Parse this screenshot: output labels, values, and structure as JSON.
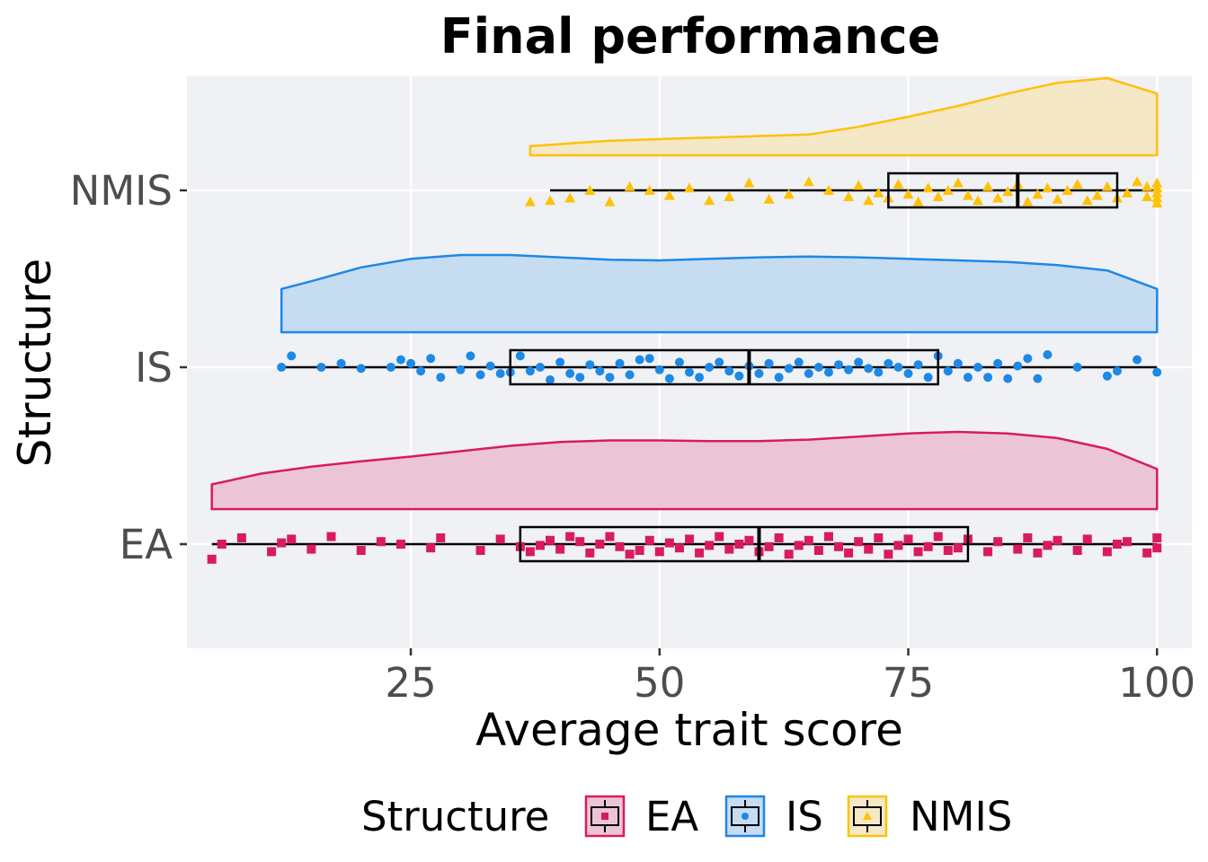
{
  "chart_data": {
    "type": "raincloud",
    "title": "Final performance",
    "xlabel": "Average trait score",
    "ylabel": "Structure",
    "xlim": [
      2.5,
      103.5
    ],
    "xticks": [
      25,
      50,
      75,
      100
    ],
    "xtick_labels": [
      "25",
      "50",
      "75",
      "100"
    ],
    "grid": true,
    "legend": {
      "title": "Structure",
      "position": "bottom",
      "entries": [
        "EA",
        "IS",
        "NMIS"
      ]
    },
    "categories": [
      "EA",
      "IS",
      "NMIS"
    ],
    "series": [
      {
        "name": "EA",
        "color": "#D81B60",
        "fill": "#ECC5D5",
        "marker": "square",
        "box": {
          "min": 5,
          "q1": 36,
          "median": 60,
          "q3": 81,
          "max": 100
        },
        "density": [
          [
            5,
            0.32
          ],
          [
            10,
            0.46
          ],
          [
            15,
            0.55
          ],
          [
            20,
            0.62
          ],
          [
            25,
            0.68
          ],
          [
            30,
            0.75
          ],
          [
            35,
            0.82
          ],
          [
            40,
            0.87
          ],
          [
            45,
            0.89
          ],
          [
            50,
            0.89
          ],
          [
            55,
            0.88
          ],
          [
            60,
            0.88
          ],
          [
            65,
            0.9
          ],
          [
            70,
            0.94
          ],
          [
            75,
            0.98
          ],
          [
            80,
            1.0
          ],
          [
            85,
            0.98
          ],
          [
            90,
            0.92
          ],
          [
            95,
            0.78
          ],
          [
            100,
            0.52
          ]
        ],
        "points": [
          [
            5,
            0.12
          ],
          [
            6,
            0.0
          ],
          [
            8,
            -0.05
          ],
          [
            11,
            0.06
          ],
          [
            12,
            -0.01
          ],
          [
            13,
            -0.04
          ],
          [
            15,
            0.04
          ],
          [
            17,
            -0.06
          ],
          [
            20,
            0.05
          ],
          [
            22,
            -0.02
          ],
          [
            24,
            0.0
          ],
          [
            27,
            0.03
          ],
          [
            28,
            -0.05
          ],
          [
            32,
            0.05
          ],
          [
            34,
            -0.04
          ],
          [
            36,
            0.02
          ],
          [
            37,
            0.06
          ],
          [
            38,
            0.01
          ],
          [
            39,
            -0.03
          ],
          [
            40,
            0.04
          ],
          [
            41,
            -0.06
          ],
          [
            42,
            -0.02
          ],
          [
            43,
            0.07
          ],
          [
            44,
            0.0
          ],
          [
            45,
            -0.06
          ],
          [
            46,
            0.02
          ],
          [
            47,
            0.08
          ],
          [
            48,
            0.05
          ],
          [
            49,
            -0.03
          ],
          [
            50,
            0.06
          ],
          [
            51,
            -0.01
          ],
          [
            52,
            0.03
          ],
          [
            53,
            -0.04
          ],
          [
            54,
            0.07
          ],
          [
            55,
            0.01
          ],
          [
            56,
            -0.06
          ],
          [
            57,
            0.04
          ],
          [
            58,
            0.0
          ],
          [
            59,
            -0.03
          ],
          [
            60,
            0.06
          ],
          [
            61,
            0.02
          ],
          [
            62,
            -0.05
          ],
          [
            63,
            0.08
          ],
          [
            64,
            0.01
          ],
          [
            65,
            -0.03
          ],
          [
            66,
            0.05
          ],
          [
            67,
            -0.06
          ],
          [
            68,
            0.02
          ],
          [
            69,
            0.07
          ],
          [
            70,
            -0.02
          ],
          [
            71,
            0.04
          ],
          [
            72,
            -0.05
          ],
          [
            73,
            0.08
          ],
          [
            74,
            0.01
          ],
          [
            75,
            -0.04
          ],
          [
            76,
            0.06
          ],
          [
            77,
            0.02
          ],
          [
            78,
            -0.06
          ],
          [
            79,
            0.05
          ],
          [
            80,
            0.03
          ],
          [
            81,
            -0.04
          ],
          [
            83,
            0.06
          ],
          [
            84,
            -0.02
          ],
          [
            86,
            0.04
          ],
          [
            87,
            -0.05
          ],
          [
            88,
            0.07
          ],
          [
            89,
            0.01
          ],
          [
            90,
            -0.03
          ],
          [
            92,
            0.05
          ],
          [
            93,
            -0.04
          ],
          [
            95,
            0.06
          ],
          [
            96,
            0.0
          ],
          [
            97,
            -0.02
          ],
          [
            99,
            0.07
          ],
          [
            100,
            0.03
          ],
          [
            100,
            -0.05
          ]
        ]
      },
      {
        "name": "IS",
        "color": "#1E88E5",
        "fill": "#C6DCF1",
        "marker": "circle",
        "box": {
          "min": 12,
          "q1": 35,
          "median": 59,
          "q3": 78,
          "max": 100
        },
        "density": [
          [
            12,
            0.56
          ],
          [
            15,
            0.66
          ],
          [
            20,
            0.84
          ],
          [
            25,
            0.95
          ],
          [
            30,
            1.0
          ],
          [
            35,
            1.0
          ],
          [
            40,
            0.97
          ],
          [
            45,
            0.94
          ],
          [
            50,
            0.93
          ],
          [
            55,
            0.95
          ],
          [
            60,
            0.97
          ],
          [
            65,
            0.98
          ],
          [
            70,
            0.97
          ],
          [
            75,
            0.95
          ],
          [
            80,
            0.93
          ],
          [
            85,
            0.91
          ],
          [
            90,
            0.87
          ],
          [
            95,
            0.8
          ],
          [
            100,
            0.56
          ]
        ],
        "points": [
          [
            12,
            0.0
          ],
          [
            13,
            -0.09
          ],
          [
            16,
            0.0
          ],
          [
            18,
            -0.03
          ],
          [
            20,
            0.01
          ],
          [
            23,
            0.0
          ],
          [
            24,
            -0.06
          ],
          [
            25,
            -0.03
          ],
          [
            26,
            0.03
          ],
          [
            27,
            -0.07
          ],
          [
            28,
            0.08
          ],
          [
            30,
            0.02
          ],
          [
            31,
            -0.09
          ],
          [
            32,
            0.06
          ],
          [
            33,
            -0.01
          ],
          [
            34,
            0.05
          ],
          [
            35,
            0.04
          ],
          [
            36,
            -0.09
          ],
          [
            37,
            0.03
          ],
          [
            38,
            0.0
          ],
          [
            39,
            0.1
          ],
          [
            40,
            -0.04
          ],
          [
            41,
            0.05
          ],
          [
            42,
            0.08
          ],
          [
            43,
            -0.02
          ],
          [
            44,
            0.03
          ],
          [
            45,
            0.08
          ],
          [
            46,
            -0.03
          ],
          [
            47,
            0.06
          ],
          [
            48,
            -0.06
          ],
          [
            49,
            -0.07
          ],
          [
            50,
            0.02
          ],
          [
            51,
            0.09
          ],
          [
            52,
            -0.04
          ],
          [
            53,
            0.04
          ],
          [
            54,
            0.08
          ],
          [
            55,
            0.0
          ],
          [
            56,
            -0.04
          ],
          [
            57,
            0.03
          ],
          [
            58,
            0.07
          ],
          [
            59,
            -0.01
          ],
          [
            60,
            0.05
          ],
          [
            61,
            -0.03
          ],
          [
            62,
            0.08
          ],
          [
            63,
            0.01
          ],
          [
            64,
            -0.04
          ],
          [
            65,
            0.05
          ],
          [
            66,
            0.0
          ],
          [
            67,
            0.04
          ],
          [
            68,
            -0.02
          ],
          [
            69,
            0.02
          ],
          [
            70,
            -0.04
          ],
          [
            71,
            0.01
          ],
          [
            72,
            0.04
          ],
          [
            73,
            -0.03
          ],
          [
            74,
            0.0
          ],
          [
            75,
            0.05
          ],
          [
            76,
            -0.02
          ],
          [
            77,
            0.08
          ],
          [
            78,
            -0.09
          ],
          [
            79,
            0.03
          ],
          [
            80,
            -0.03
          ],
          [
            81,
            0.08
          ],
          [
            82,
            0.0
          ],
          [
            83,
            0.08
          ],
          [
            84,
            -0.03
          ],
          [
            85,
            0.09
          ],
          [
            86,
            -0.01
          ],
          [
            87,
            -0.07
          ],
          [
            88,
            0.09
          ],
          [
            89,
            -0.1
          ],
          [
            92,
            0.0
          ],
          [
            95,
            0.07
          ],
          [
            96,
            0.03
          ],
          [
            98,
            -0.06
          ],
          [
            100,
            0.04
          ]
        ]
      },
      {
        "name": "NMIS",
        "color": "#FFC107",
        "fill": "#F4E8C6",
        "marker": "triangle",
        "box": {
          "min": 39,
          "q1": 73,
          "median": 86,
          "q3": 96,
          "max": 100
        },
        "density": [
          [
            37,
            0.12
          ],
          [
            45,
            0.19
          ],
          [
            55,
            0.23
          ],
          [
            65,
            0.27
          ],
          [
            70,
            0.37
          ],
          [
            75,
            0.5
          ],
          [
            80,
            0.64
          ],
          [
            85,
            0.8
          ],
          [
            90,
            0.94
          ],
          [
            95,
            1.0
          ],
          [
            100,
            0.8
          ]
        ],
        "points": [
          [
            37,
            0.09
          ],
          [
            39,
            0.08
          ],
          [
            41,
            0.06
          ],
          [
            43,
            0.0
          ],
          [
            45,
            0.09
          ],
          [
            47,
            -0.03
          ],
          [
            49,
            0.0
          ],
          [
            51,
            0.04
          ],
          [
            53,
            -0.02
          ],
          [
            55,
            0.08
          ],
          [
            57,
            0.05
          ],
          [
            59,
            -0.06
          ],
          [
            61,
            0.07
          ],
          [
            63,
            0.03
          ],
          [
            65,
            -0.07
          ],
          [
            67,
            0.0
          ],
          [
            69,
            0.05
          ],
          [
            70,
            -0.04
          ],
          [
            71,
            0.08
          ],
          [
            72,
            0.02
          ],
          [
            73,
            0.06
          ],
          [
            74,
            -0.05
          ],
          [
            75,
            0.03
          ],
          [
            76,
            0.09
          ],
          [
            77,
            -0.02
          ],
          [
            78,
            0.05
          ],
          [
            79,
            0.0
          ],
          [
            80,
            -0.06
          ],
          [
            81,
            0.04
          ],
          [
            82,
            0.08
          ],
          [
            83,
            -0.03
          ],
          [
            84,
            0.06
          ],
          [
            85,
            0.01
          ],
          [
            86,
            -0.05
          ],
          [
            87,
            0.09
          ],
          [
            88,
            0.03
          ],
          [
            89,
            -0.02
          ],
          [
            90,
            0.07
          ],
          [
            91,
            0.0
          ],
          [
            92,
            -0.05
          ],
          [
            93,
            0.08
          ],
          [
            94,
            0.04
          ],
          [
            95,
            -0.03
          ],
          [
            96,
            0.06
          ],
          [
            97,
            0.02
          ],
          [
            98,
            -0.07
          ],
          [
            99,
            0.05
          ],
          [
            99,
            -0.03
          ],
          [
            100,
            0.1
          ],
          [
            100,
            0.06
          ],
          [
            100,
            0.02
          ],
          [
            100,
            -0.02
          ],
          [
            100,
            -0.06
          ]
        ]
      }
    ]
  }
}
